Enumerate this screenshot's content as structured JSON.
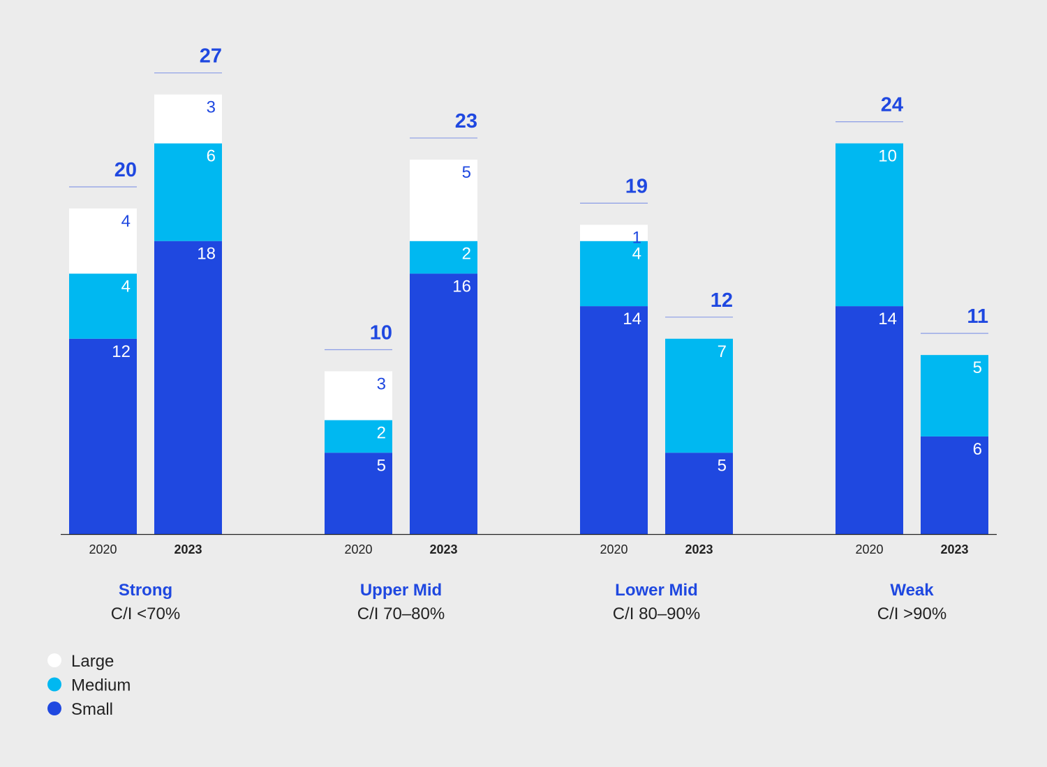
{
  "chart_data": {
    "type": "bar",
    "stacked": true,
    "groups": [
      {
        "name": "Strong",
        "subtitle": "C/I <70%"
      },
      {
        "name": "Upper Mid",
        "subtitle": "C/I 70–80%"
      },
      {
        "name": "Lower Mid",
        "subtitle": "C/I 80–90%"
      },
      {
        "name": "Weak",
        "subtitle": "C/I >90%"
      }
    ],
    "categories": [
      "2020",
      "2023",
      "2020",
      "2023",
      "2020",
      "2023",
      "2020",
      "2023"
    ],
    "series": [
      {
        "name": "Small",
        "color": "#1f48e0",
        "values": [
          12,
          18,
          5,
          16,
          14,
          5,
          14,
          6
        ]
      },
      {
        "name": "Medium",
        "color": "#00b8f1",
        "values": [
          4,
          6,
          2,
          2,
          4,
          7,
          10,
          5
        ]
      },
      {
        "name": "Large",
        "color": "#ffffff",
        "values": [
          4,
          3,
          3,
          5,
          1,
          0,
          0,
          0
        ]
      }
    ],
    "totals": [
      20,
      27,
      10,
      23,
      19,
      12,
      24,
      11
    ],
    "legend": [
      "Large",
      "Medium",
      "Small"
    ],
    "legend_position": "bottom-left",
    "grid": false,
    "ylim": [
      0,
      28
    ],
    "title": "",
    "xlabel": "",
    "ylabel": ""
  },
  "colors": {
    "background": "#ececec",
    "accent": "#1f48e0",
    "total_rule": "#8a9ce6",
    "axis": "#222222"
  }
}
